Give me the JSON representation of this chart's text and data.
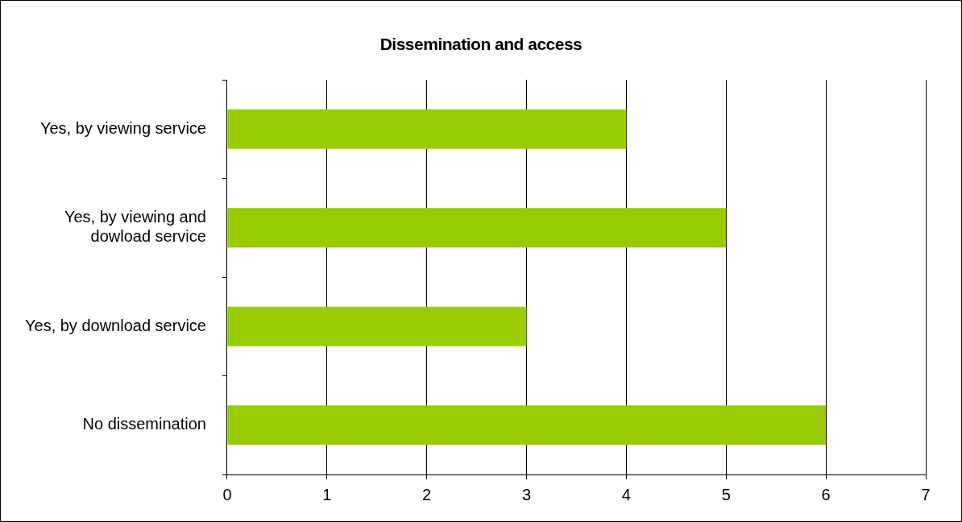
{
  "chart_data": {
    "type": "bar",
    "orientation": "horizontal",
    "title": "Dissemination and access",
    "categories": [
      "Yes, by viewing service",
      "Yes, by viewing and dowload service",
      "Yes, by download service",
      "No dissemination"
    ],
    "values": [
      4,
      5,
      3,
      6
    ],
    "color": "#99cc00",
    "xlim": [
      0,
      7
    ],
    "xticks": [
      0,
      1,
      2,
      3,
      4,
      5,
      6,
      7
    ],
    "grid": "x",
    "legend": false
  }
}
